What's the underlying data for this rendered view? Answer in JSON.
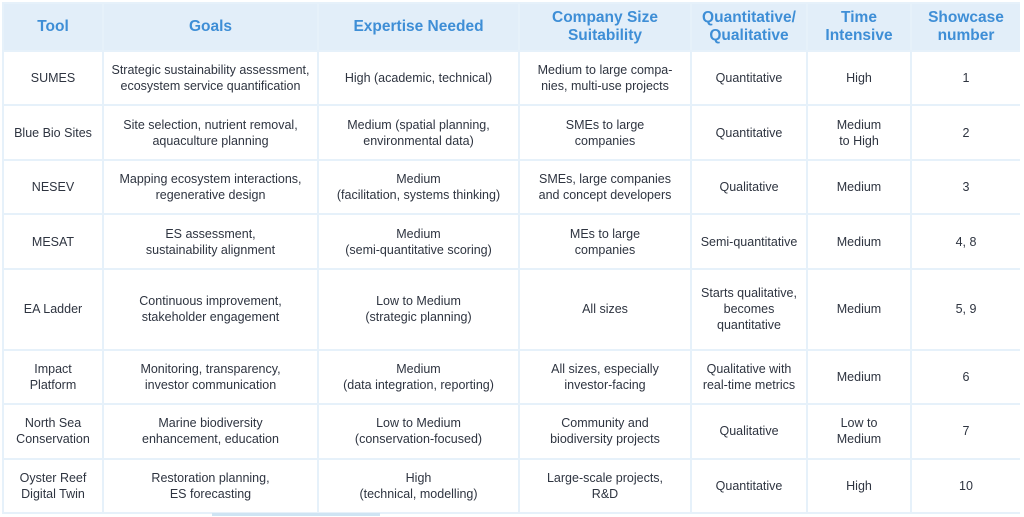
{
  "table": {
    "headers": [
      "Tool",
      "Goals",
      "Expertise\nNeeded",
      "Company Size\nSuitability",
      "Quantitative/\nQualitative",
      "Time\nIntensive",
      "Showcase\nnumber"
    ],
    "rows": [
      [
        "SUMES",
        "Strategic sustainability assessment,\necosystem service quantification",
        "High (academic, technical)",
        "Medium to large compa-\nnies, multi-use projects",
        "Quantitative",
        "High",
        "1"
      ],
      [
        "Blue Bio Sites",
        "Site selection, nutrient removal,\naquaculture planning",
        "Medium (spatial planning,\nenvironmental data)",
        "SMEs to large\ncompanies",
        "Quantitative",
        "Medium\nto High",
        "2"
      ],
      [
        "NESEV",
        "Mapping ecosystem interactions,\nregenerative design",
        "Medium\n(facilitation, systems thinking)",
        "SMEs, large companies\nand concept developers",
        "Qualitative",
        "Medium",
        "3"
      ],
      [
        "MESAT",
        "ES assessment,\nsustainability alignment",
        "Medium\n(semi-quantitative scoring)",
        "MEs to large\ncompanies",
        "Semi-quantitative",
        "Medium",
        "4, 8"
      ],
      [
        "EA Ladder",
        "Continuous improvement,\nstakeholder engagement",
        "Low to Medium\n(strategic planning)",
        "All sizes",
        "Starts qualitative,\nbecomes quantitative",
        "Medium",
        "5, 9"
      ],
      [
        "Impact\nPlatform",
        "Monitoring, transparency,\ninvestor communication",
        "Medium\n(data integration, reporting)",
        "All sizes, especially\ninvestor-facing",
        "Qualitative with\nreal-time metrics",
        "Medium",
        "6"
      ],
      [
        "North Sea\nConservation",
        "Marine biodiversity\nenhancement, education",
        "Low to Medium\n(conservation-focused)",
        "Community and\nbiodiversity projects",
        "Qualitative",
        "Low to\nMedium",
        "7"
      ],
      [
        "Oyster Reef\nDigital Twin",
        "Restoration planning,\nES forecasting",
        "High\n(technical, modelling)",
        "Large-scale projects,\nR&D",
        "Quantitative",
        "High",
        "10"
      ]
    ]
  }
}
